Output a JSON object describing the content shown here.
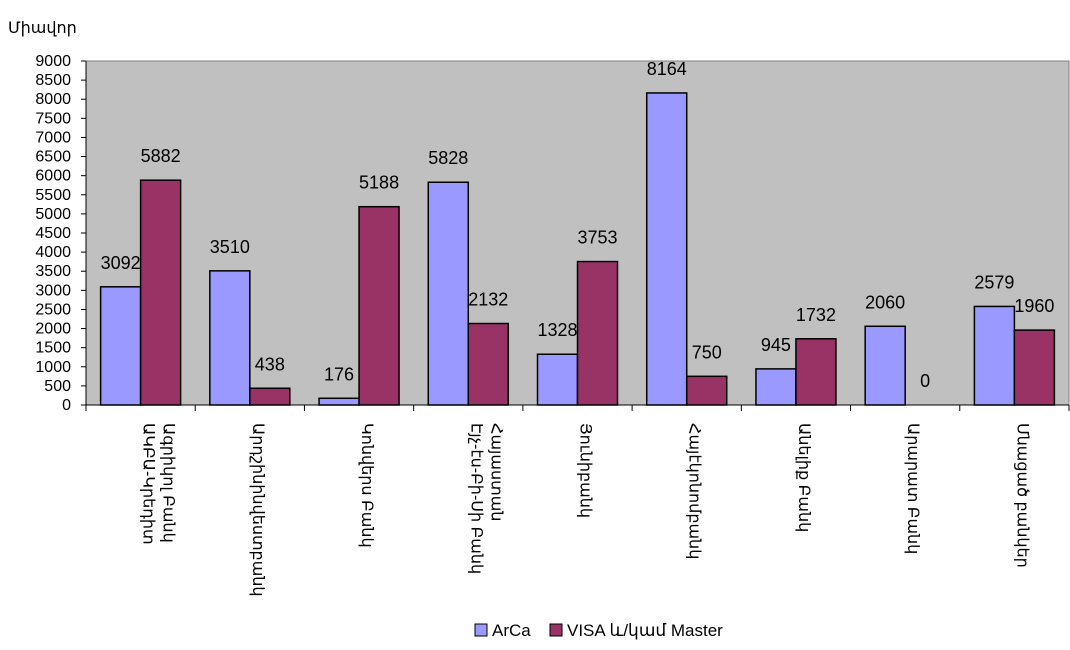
{
  "chart_data": {
    "type": "bar",
    "title": "",
    "xlabel": "",
    "ylabel": "Միավոր",
    "ylim": [
      0,
      9000
    ],
    "yticks": [
      0,
      500,
      1000,
      1500,
      2000,
      2500,
      3000,
      3500,
      4000,
      4500,
      5000,
      5500,
      6000,
      6500,
      7000,
      7500,
      8000,
      8500,
      9000
    ],
    "grid": false,
    "plot_background": "#c0c0c0",
    "legend_position": "bottom",
    "categories": [
      [
        "ԱԿԲԱ-Կրեդիտ",
        "Ագրիկոլ Բանկ"
      ],
      [
        "Արդշինինվեստբանկ"
      ],
      [
        "Կոնվերս Բանկ"
      ],
      [
        "Էյչ-էս-Բի-Սի Բանկ",
        "Հայաստան"
      ],
      [
        "Յունիբանկ"
      ],
      [
        "Հայէկոնոմբանկ"
      ],
      [
        "Անելիք Բանկ"
      ],
      [
        "Արարատ Բանկ"
      ],
      [
        "Մնացած բանկեր"
      ]
    ],
    "series": [
      {
        "name": "ArCa",
        "color": "#9999ff",
        "values": [
          3092,
          3510,
          176,
          5828,
          1328,
          8164,
          945,
          2060,
          2579
        ]
      },
      {
        "name": "VISA և/կամ Master",
        "color": "#993366",
        "values": [
          5882,
          438,
          5188,
          2132,
          3753,
          750,
          1732,
          0,
          1960
        ]
      }
    ]
  }
}
